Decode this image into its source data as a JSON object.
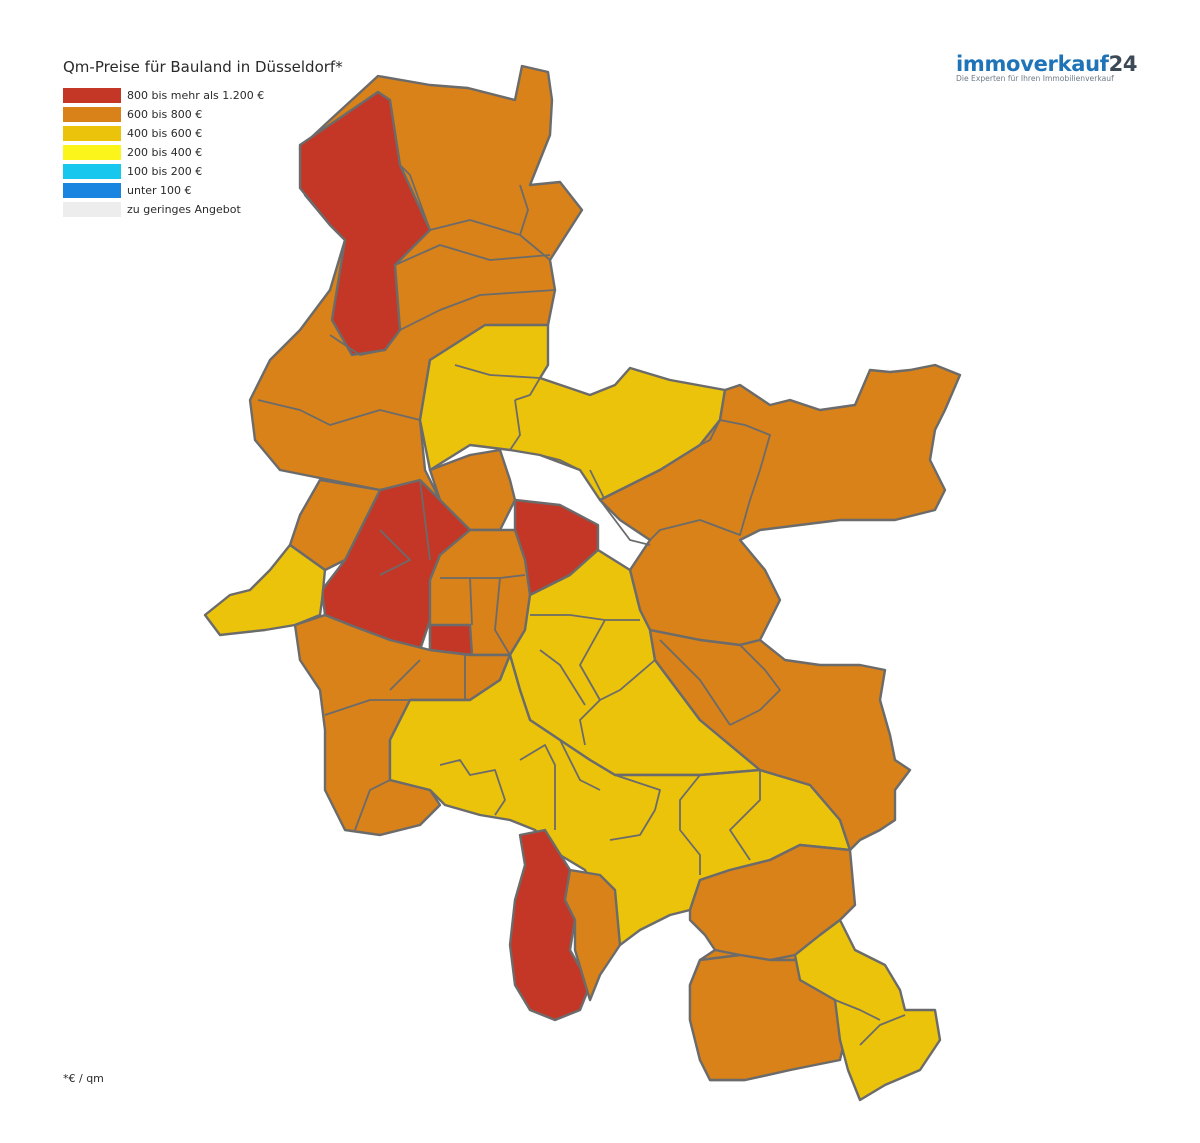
{
  "title": "Qm-Preise für Bauland in Düsseldorf*",
  "legend": [
    {
      "label": "800 bis mehr als 1.200 €",
      "color": "#c43726"
    },
    {
      "label": "600 bis 800 €",
      "color": "#d88219"
    },
    {
      "label": "400 bis 600 €",
      "color": "#ebc30b"
    },
    {
      "label": "200 bis 400 €",
      "color": "#fbf51c"
    },
    {
      "label": "100 bis 200 €",
      "color": "#18c7ee"
    },
    {
      "label": "unter 100 €",
      "color": "#1985e1"
    },
    {
      "label": "zu geringes Angebot",
      "color": "#ededed"
    }
  ],
  "logo": {
    "word": "immoverkauf",
    "number": "24",
    "tagline": "Die Experten für Ihren Immobilienverkauf"
  },
  "footnote": "*€ / qm"
}
